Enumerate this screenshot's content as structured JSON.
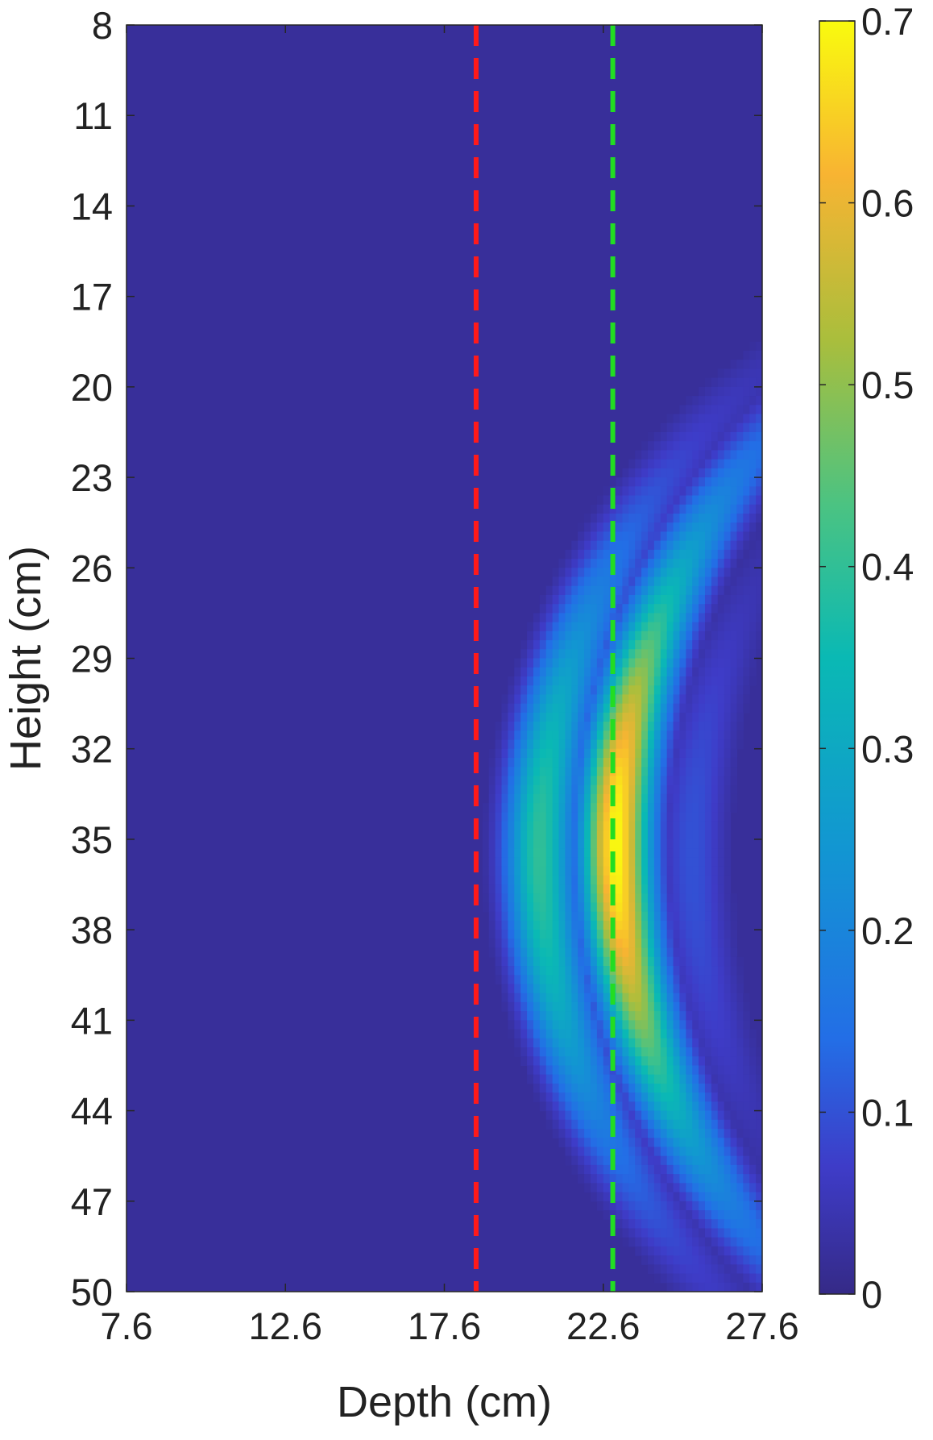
{
  "chart_data": {
    "type": "heatmap",
    "title": "",
    "xlabel": "Depth (cm)",
    "ylabel": "Height (cm)",
    "xlim": [
      7.6,
      27.6
    ],
    "ylim": [
      8,
      50
    ],
    "y_reversed": true,
    "x_ticks": [
      7.6,
      12.6,
      17.6,
      22.6,
      27.6
    ],
    "x_tick_labels": [
      "7.6",
      "12.6",
      "17.6",
      "22.6",
      "27.6"
    ],
    "y_ticks": [
      8,
      11,
      14,
      17,
      20,
      23,
      26,
      29,
      32,
      35,
      38,
      41,
      44,
      47,
      50
    ],
    "y_tick_labels": [
      "8",
      "11",
      "14",
      "17",
      "20",
      "23",
      "26",
      "29",
      "32",
      "35",
      "38",
      "41",
      "44",
      "47",
      "50"
    ],
    "colormap": "parula",
    "colorbar": {
      "range": [
        0,
        0.7
      ],
      "ticks": [
        0,
        0.1,
        0.2,
        0.3,
        0.4,
        0.5,
        0.6,
        0.7
      ],
      "tick_labels": [
        "0",
        "0.1",
        "0.2",
        "0.3",
        "0.4",
        "0.5",
        "0.6",
        "0.7"
      ]
    },
    "background_value": 0.02,
    "field": {
      "description_of_peaks": "three concentric arcs centred near height 35 cm, curving toward smaller depth above and below",
      "arcs": [
        {
          "depth_at_center": 20.6,
          "peak_value": 0.4,
          "center_height": 35.5
        },
        {
          "depth_at_center": 23.0,
          "peak_value": 0.7,
          "center_height": 35.2
        },
        {
          "depth_at_center": 25.4,
          "peak_value": 0.1,
          "center_height": 35.5
        }
      ],
      "arc_radius_cm": 22,
      "arc_width_cm": 0.75
    },
    "reference_lines": [
      {
        "orientation": "vertical",
        "x": 18.6,
        "color": "#ff1a1a",
        "style": "dashed"
      },
      {
        "orientation": "vertical",
        "x": 22.9,
        "color": "#22dd22",
        "style": "dashed"
      }
    ]
  }
}
